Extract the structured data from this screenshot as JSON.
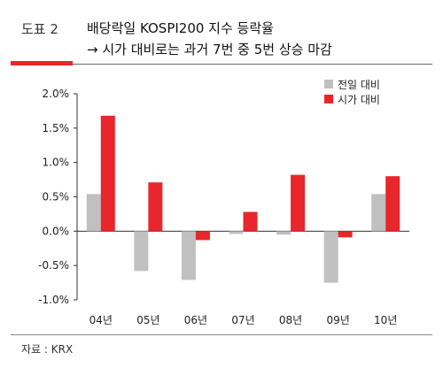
{
  "header": {
    "figure_label": "도표 2",
    "title_line1": "배당락일 KOSPI200 지수 등락율",
    "title_line2": "→ 시가 대비로는 과거 7번 중 5번 상승 마감"
  },
  "footer": {
    "source": "자료 : KRX"
  },
  "colors": {
    "accent_red": "#e8262b",
    "gray": "#c0c0c0"
  },
  "chart_data": {
    "type": "bar",
    "categories": [
      "04년",
      "05년",
      "06년",
      "07년",
      "08년",
      "09년",
      "10년"
    ],
    "series": [
      {
        "name": "전일 대비",
        "color": "#c0c0c0",
        "values": [
          0.54,
          -0.58,
          -0.71,
          -0.04,
          -0.05,
          -0.75,
          0.54
        ]
      },
      {
        "name": "시가 대비",
        "color": "#e8262b",
        "values": [
          1.68,
          0.71,
          -0.13,
          0.28,
          0.82,
          -0.09,
          0.8
        ]
      }
    ],
    "y_ticks": [
      "2.0%",
      "1.5%",
      "1.0%",
      "0.5%",
      "0.0%",
      "-0.5%",
      "-1.0%"
    ],
    "ylim": [
      -1.0,
      2.0
    ],
    "grid": false,
    "legend_position": "top-right"
  }
}
